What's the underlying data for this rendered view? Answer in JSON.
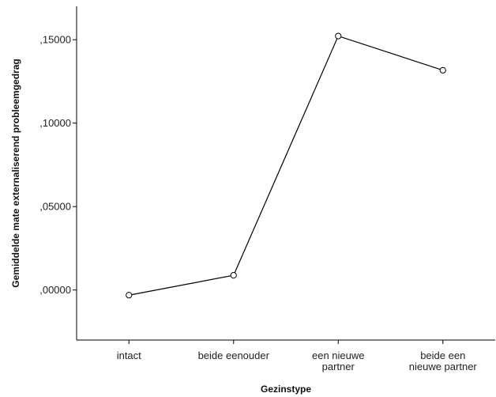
{
  "chart_data": {
    "type": "line",
    "title": "",
    "xlabel": "Gezinstype",
    "ylabel": "Gemiddelde mate externaliserend probleemgedrag",
    "categories": [
      [
        "intact"
      ],
      [
        "beide eenouder"
      ],
      [
        "een nieuwe",
        "partner"
      ],
      [
        "beide een",
        "nieuwe partner"
      ]
    ],
    "series": [
      {
        "values": [
          -0.0031,
          0.0088,
          0.1522,
          0.1317
        ]
      }
    ],
    "ylim": [
      -0.03,
      0.17
    ],
    "yticks": [
      0.0,
      0.05,
      0.1,
      0.15
    ],
    "ytick_labels": [
      ",00000",
      ",05000",
      ",10000",
      ",15000"
    ],
    "grid": false,
    "colors": {
      "line": "#000000",
      "marker": "#000000"
    }
  }
}
